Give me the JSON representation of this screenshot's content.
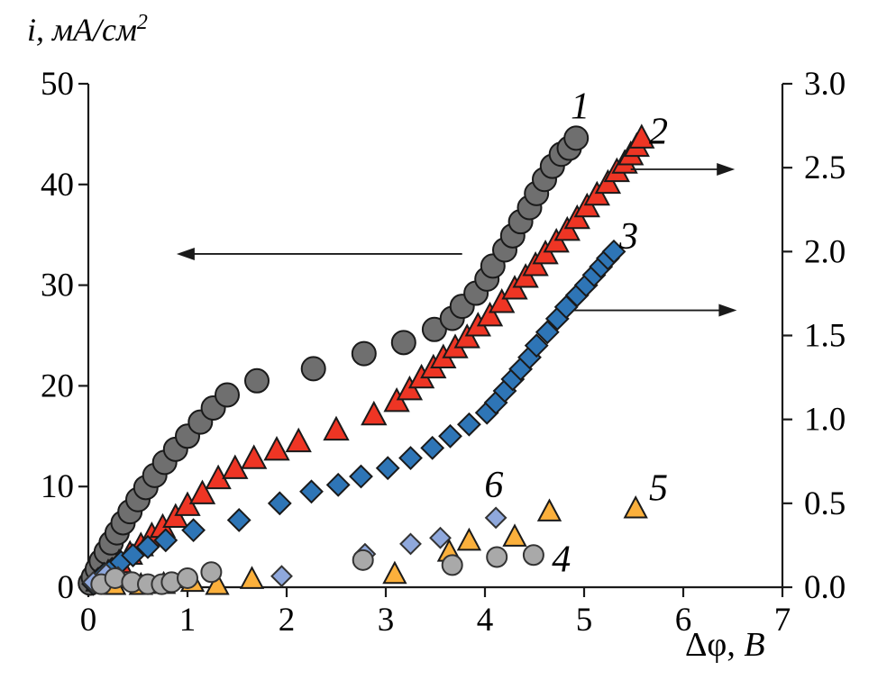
{
  "labels": {
    "y_axis_title_main": "i, мА/см",
    "y_axis_title_sup": "2",
    "x_axis_title_main": "Δφ,",
    "x_axis_title_unit": "В"
  },
  "chart_data": {
    "type": "scatter",
    "title": "",
    "xlabel": "Δφ, В",
    "ylabel_left": "i, мА/см²",
    "ylabel_right": "",
    "grid": false,
    "x_axis": {
      "min": 0,
      "max": 7,
      "ticks": [
        {
          "v": 0,
          "label": "0"
        },
        {
          "v": 1,
          "label": "1"
        },
        {
          "v": 2,
          "label": "2"
        },
        {
          "v": 3,
          "label": "3"
        },
        {
          "v": 4,
          "label": "4"
        },
        {
          "v": 5,
          "label": "5"
        },
        {
          "v": 6,
          "label": "6"
        },
        {
          "v": 7,
          "label": "7"
        }
      ]
    },
    "y_axis_left": {
      "min": 0,
      "max": 50,
      "ticks": [
        {
          "v": 0,
          "label": "0"
        },
        {
          "v": 10,
          "label": "10"
        },
        {
          "v": 20,
          "label": "20"
        },
        {
          "v": 30,
          "label": "30"
        },
        {
          "v": 40,
          "label": "40"
        },
        {
          "v": 50,
          "label": "50"
        }
      ]
    },
    "y_axis_right": {
      "min": 0,
      "max": 3,
      "ticks": [
        {
          "v": 0.0,
          "label": "0.0"
        },
        {
          "v": 0.5,
          "label": "0.5"
        },
        {
          "v": 1.0,
          "label": "1.0"
        },
        {
          "v": 1.5,
          "label": "1.5"
        },
        {
          "v": 2.0,
          "label": "2.0"
        },
        {
          "v": 2.5,
          "label": "2.5"
        },
        {
          "v": 3.0,
          "label": "3.0"
        }
      ]
    },
    "series": [
      {
        "id": "1",
        "label": "1",
        "marker": "circle",
        "axis": "left",
        "fill": "#6f6f6f",
        "stroke": "#1a1a1a",
        "size": 13,
        "points": [
          [
            0.02,
            0.4
          ],
          [
            0.05,
            1.0
          ],
          [
            0.09,
            1.8
          ],
          [
            0.13,
            2.6
          ],
          [
            0.18,
            3.5
          ],
          [
            0.23,
            4.4
          ],
          [
            0.29,
            5.4
          ],
          [
            0.35,
            6.4
          ],
          [
            0.42,
            7.5
          ],
          [
            0.5,
            8.7
          ],
          [
            0.58,
            9.9
          ],
          [
            0.67,
            11.1
          ],
          [
            0.77,
            12.4
          ],
          [
            0.88,
            13.7
          ],
          [
            1.0,
            15.0
          ],
          [
            1.13,
            16.4
          ],
          [
            1.26,
            17.8
          ],
          [
            1.4,
            19.1
          ],
          [
            1.7,
            20.5
          ],
          [
            2.27,
            21.7
          ],
          [
            2.78,
            23.2
          ],
          [
            3.18,
            24.3
          ],
          [
            3.49,
            25.6
          ],
          [
            3.67,
            26.7
          ],
          [
            3.77,
            27.9
          ],
          [
            3.91,
            29.2
          ],
          [
            4.02,
            30.6
          ],
          [
            4.08,
            31.9
          ],
          [
            4.2,
            33.5
          ],
          [
            4.28,
            34.9
          ],
          [
            4.36,
            36.3
          ],
          [
            4.45,
            37.7
          ],
          [
            4.52,
            39.1
          ],
          [
            4.6,
            40.5
          ],
          [
            4.68,
            41.8
          ],
          [
            4.77,
            43.0
          ],
          [
            4.85,
            43.6
          ],
          [
            4.92,
            44.6
          ]
        ]
      },
      {
        "id": "2",
        "label": "2",
        "marker": "triangle",
        "axis": "right",
        "fill": "#ee3524",
        "stroke": "#1a1a1a",
        "size": 13,
        "points": [
          [
            0.1,
            0.03
          ],
          [
            0.2,
            0.08
          ],
          [
            0.31,
            0.14
          ],
          [
            0.42,
            0.19
          ],
          [
            0.53,
            0.24
          ],
          [
            0.64,
            0.3
          ],
          [
            0.75,
            0.35
          ],
          [
            0.88,
            0.41
          ],
          [
            1.0,
            0.48
          ],
          [
            1.15,
            0.55
          ],
          [
            1.31,
            0.64
          ],
          [
            1.48,
            0.7
          ],
          [
            1.67,
            0.76
          ],
          [
            1.9,
            0.81
          ],
          [
            2.12,
            0.86
          ],
          [
            2.5,
            0.93
          ],
          [
            2.88,
            1.02
          ],
          [
            3.11,
            1.1
          ],
          [
            3.24,
            1.17
          ],
          [
            3.36,
            1.24
          ],
          [
            3.48,
            1.3
          ],
          [
            3.58,
            1.36
          ],
          [
            3.7,
            1.42
          ],
          [
            3.82,
            1.48
          ],
          [
            3.93,
            1.55
          ],
          [
            4.05,
            1.61
          ],
          [
            4.17,
            1.69
          ],
          [
            4.3,
            1.77
          ],
          [
            4.41,
            1.84
          ],
          [
            4.51,
            1.91
          ],
          [
            4.61,
            1.98
          ],
          [
            4.72,
            2.05
          ],
          [
            4.83,
            2.12
          ],
          [
            4.93,
            2.19
          ],
          [
            5.03,
            2.26
          ],
          [
            5.13,
            2.33
          ],
          [
            5.24,
            2.4
          ],
          [
            5.33,
            2.47
          ],
          [
            5.41,
            2.52
          ],
          [
            5.47,
            2.57
          ],
          [
            5.53,
            2.62
          ],
          [
            5.58,
            2.67
          ]
        ]
      },
      {
        "id": "3",
        "label": "3",
        "marker": "diamond",
        "axis": "right",
        "fill": "#2e75b6",
        "stroke": "#1a1a1a",
        "size": 12,
        "points": [
          [
            0.05,
            0.02
          ],
          [
            0.1,
            0.05
          ],
          [
            0.16,
            0.08
          ],
          [
            0.24,
            0.11
          ],
          [
            0.33,
            0.15
          ],
          [
            0.45,
            0.19
          ],
          [
            0.6,
            0.24
          ],
          [
            0.78,
            0.28
          ],
          [
            1.06,
            0.34
          ],
          [
            1.52,
            0.4
          ],
          [
            1.93,
            0.5
          ],
          [
            2.25,
            0.57
          ],
          [
            2.52,
            0.61
          ],
          [
            2.75,
            0.66
          ],
          [
            3.02,
            0.71
          ],
          [
            3.25,
            0.77
          ],
          [
            3.47,
            0.83
          ],
          [
            3.65,
            0.9
          ],
          [
            3.84,
            0.97
          ],
          [
            4.02,
            1.04
          ],
          [
            4.11,
            1.1
          ],
          [
            4.2,
            1.17
          ],
          [
            4.28,
            1.24
          ],
          [
            4.36,
            1.3
          ],
          [
            4.45,
            1.37
          ],
          [
            4.52,
            1.44
          ],
          [
            4.63,
            1.52
          ],
          [
            4.73,
            1.6
          ],
          [
            4.82,
            1.67
          ],
          [
            4.93,
            1.74
          ],
          [
            5.02,
            1.8
          ],
          [
            5.1,
            1.86
          ],
          [
            5.17,
            1.91
          ],
          [
            5.24,
            1.96
          ],
          [
            5.3,
            2.0
          ]
        ]
      },
      {
        "id": "6",
        "label": "6",
        "marker": "diamond",
        "axis": "left",
        "fill": "#8fa8dc",
        "stroke": "#333333",
        "size": 11,
        "points": [
          [
            0.05,
            0.5
          ],
          [
            0.18,
            1.3
          ],
          [
            0.3,
            1.0
          ],
          [
            1.95,
            1.1
          ],
          [
            2.79,
            3.3
          ],
          [
            3.25,
            4.3
          ],
          [
            3.55,
            4.9
          ],
          [
            4.11,
            6.9
          ]
        ]
      },
      {
        "id": "5",
        "label": "5",
        "marker": "triangle",
        "axis": "left",
        "fill": "#fbb03c",
        "stroke": "#1a1a1a",
        "size": 12,
        "points": [
          [
            0.26,
            0.1
          ],
          [
            0.53,
            0.1
          ],
          [
            0.76,
            0.2
          ],
          [
            1.05,
            0.4
          ],
          [
            1.3,
            0.1
          ],
          [
            1.65,
            0.7
          ],
          [
            3.09,
            1.2
          ],
          [
            3.64,
            3.4
          ],
          [
            3.84,
            4.5
          ],
          [
            4.3,
            4.9
          ],
          [
            4.65,
            7.4
          ],
          [
            5.52,
            7.7
          ]
        ]
      },
      {
        "id": "4",
        "label": "4",
        "marker": "circle",
        "axis": "left",
        "fill": "#a9a9a9",
        "stroke": "#333333",
        "size": 11,
        "points": [
          [
            0.13,
            0.3
          ],
          [
            0.27,
            0.9
          ],
          [
            0.44,
            0.5
          ],
          [
            0.6,
            0.3
          ],
          [
            0.74,
            0.3
          ],
          [
            0.84,
            0.5
          ],
          [
            1.0,
            0.9
          ],
          [
            1.24,
            1.5
          ],
          [
            2.77,
            2.7
          ],
          [
            3.67,
            2.2
          ],
          [
            4.12,
            3.0
          ],
          [
            4.49,
            3.2
          ]
        ]
      }
    ],
    "annotations": [
      {
        "text": "1",
        "x": 4.96,
        "y": 47.8
      },
      {
        "text": "2",
        "x": 5.75,
        "y": 45.3
      },
      {
        "text": "3",
        "x": 5.45,
        "y": 34.9
      },
      {
        "text": "4",
        "x": 4.77,
        "y": 2.8
      },
      {
        "text": "5",
        "x": 5.75,
        "y": 9.9
      },
      {
        "text": "6",
        "x": 4.09,
        "y": 10.2
      }
    ],
    "arrows": [
      {
        "name": "left-axis-arrow",
        "x_tail": 3.77,
        "x_head": 0.89,
        "y": 33.1
      },
      {
        "name": "right-axis-arrow-series2",
        "x_tail": 5.47,
        "x_head": 6.52,
        "y": 41.5
      },
      {
        "name": "right-axis-arrow-series3",
        "x_tail": 4.9,
        "x_head": 6.54,
        "y": 27.5
      }
    ],
    "colors": {
      "axis": "#1a1a1a",
      "tick_text": "#000000",
      "background": "#ffffff"
    }
  }
}
